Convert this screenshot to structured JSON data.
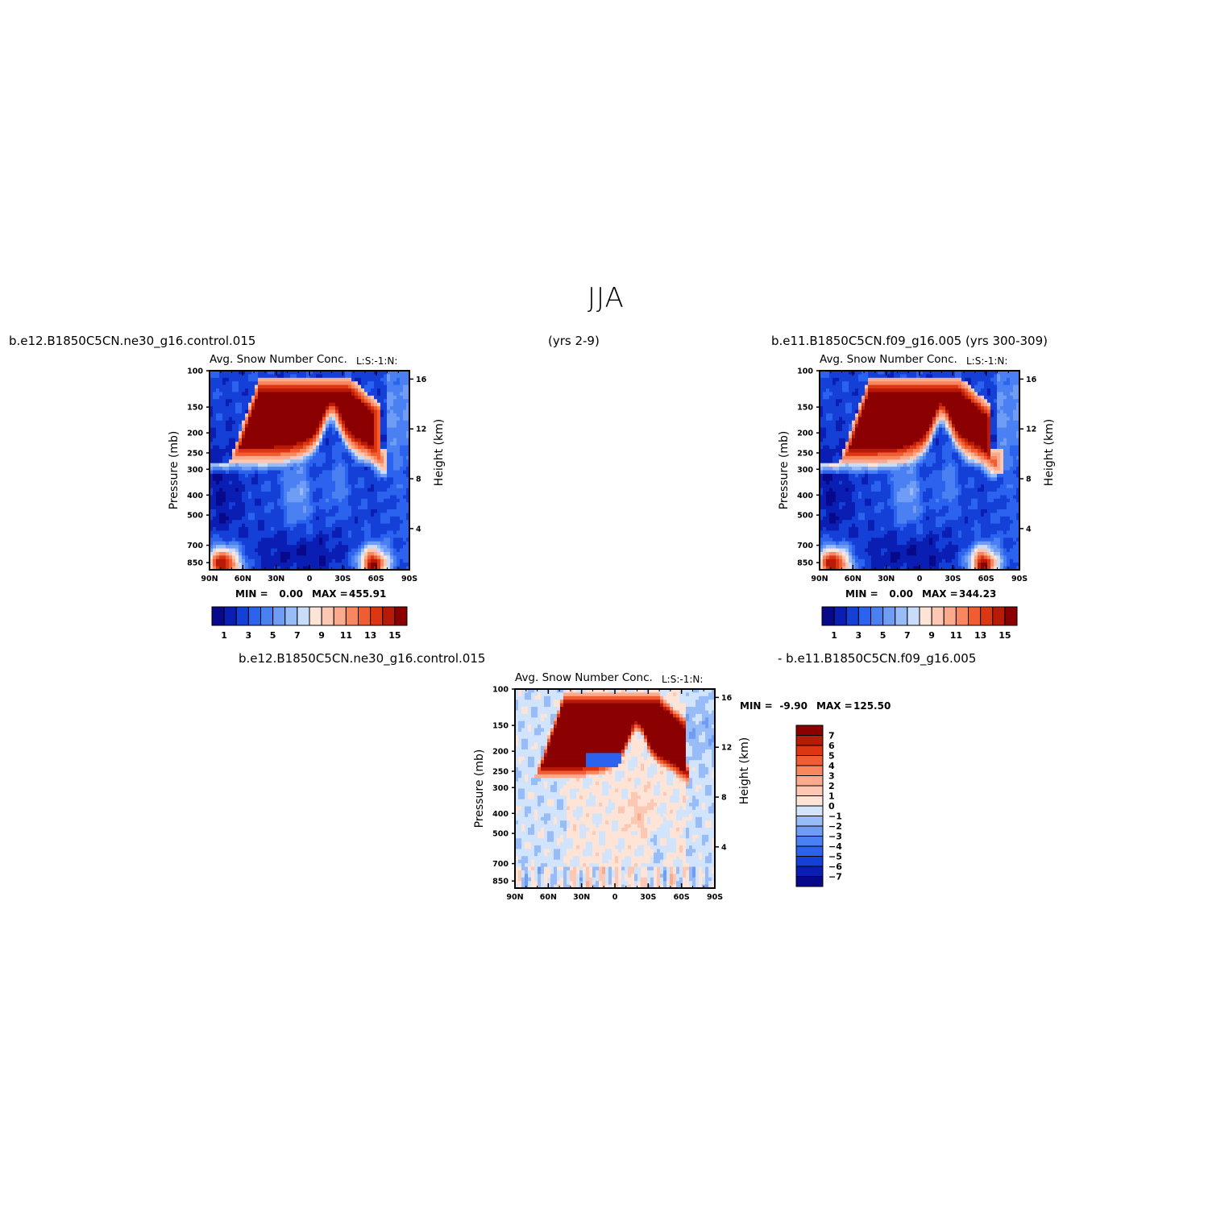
{
  "figure": {
    "title": "JJA",
    "left_case": "b.e12.B1850C5CN.ne30_g16.control.015",
    "years_left": "(yrs 2-9)",
    "right_case": "b.e11.B1850C5CN.f09_g16.005 (yrs 300-309)",
    "diff_case_a": "b.e12.B1850C5CN.ne30_g16.control.015",
    "diff_case_b": "- b.e11.B1850C5CN.f09_g16.005"
  },
  "colors": {
    "main_scale": [
      "#08088a",
      "#0a1eb4",
      "#1540d8",
      "#2c63ee",
      "#4b80f2",
      "#6f9cf4",
      "#98bcf7",
      "#c9ddfb",
      "#fde4d6",
      "#fcc8b4",
      "#fbaa8e",
      "#f8865f",
      "#f15d33",
      "#dc3613",
      "#b81a08",
      "#8b0000"
    ],
    "diff_scale": [
      "#08088a",
      "#0a1eb4",
      "#1540d8",
      "#2c63ee",
      "#4b80f2",
      "#6f9cf4",
      "#98bcf7",
      "#d2e4fb",
      "#fde4d6",
      "#fcc8b4",
      "#fbaa8e",
      "#f8865f",
      "#f15d33",
      "#dc3613",
      "#b81a08",
      "#8b0000"
    ]
  },
  "chart_data": [
    {
      "type": "heatmap",
      "panel": "control",
      "title": "Avg. Snow Number Conc.",
      "units": "L:S:-1:N:",
      "xlabel": "",
      "ylabel": "Pressure (mb)",
      "ylabel_right": "Height (km)",
      "x_ticks": [
        "90N",
        "60N",
        "30N",
        "0",
        "30S",
        "60S",
        "90S"
      ],
      "y_ticks": [
        "100",
        "150",
        "200",
        "250",
        "300",
        "400",
        "500",
        "700",
        "850"
      ],
      "y_right_ticks": [
        "16",
        "12",
        "8",
        "4"
      ],
      "min_label": "MIN =",
      "min": "0.00",
      "max_label": "MAX =",
      "max": "455.91",
      "colorbar_ticks": [
        "1",
        "3",
        "5",
        "7",
        "9",
        "11",
        "13",
        "15"
      ],
      "colorbar_range": [
        0,
        16
      ]
    },
    {
      "type": "heatmap",
      "panel": "reference",
      "title": "Avg. Snow Number Conc.",
      "units": "L:S:-1:N:",
      "xlabel": "",
      "ylabel": "Pressure (mb)",
      "ylabel_right": "Height (km)",
      "x_ticks": [
        "90N",
        "60N",
        "30N",
        "0",
        "30S",
        "60S",
        "90S"
      ],
      "y_ticks": [
        "100",
        "150",
        "200",
        "250",
        "300",
        "400",
        "500",
        "700",
        "850"
      ],
      "y_right_ticks": [
        "16",
        "12",
        "8",
        "4"
      ],
      "min_label": "MIN =",
      "min": "0.00",
      "max_label": "MAX =",
      "max": "344.23",
      "colorbar_ticks": [
        "1",
        "3",
        "5",
        "7",
        "9",
        "11",
        "13",
        "15"
      ],
      "colorbar_range": [
        0,
        16
      ]
    },
    {
      "type": "heatmap",
      "panel": "difference",
      "title": "Avg. Snow Number Conc.",
      "units": "L:S:-1:N:",
      "xlabel": "",
      "ylabel": "Pressure (mb)",
      "ylabel_right": "Height (km)",
      "x_ticks": [
        "90N",
        "60N",
        "30N",
        "0",
        "30S",
        "60S",
        "90S"
      ],
      "y_ticks": [
        "100",
        "150",
        "200",
        "250",
        "300",
        "400",
        "500",
        "700",
        "850"
      ],
      "y_right_ticks": [
        "16",
        "12",
        "8",
        "4"
      ],
      "min_label": "MIN =",
      "min": "-9.90",
      "max_label": "MAX =",
      "max": "125.50",
      "colorbar_ticks": [
        "7",
        "6",
        "5",
        "4",
        "3",
        "2",
        "1",
        "0",
        "-1",
        "-2",
        "-3",
        "-4",
        "-5",
        "-6",
        "-7"
      ],
      "colorbar_range": [
        -8,
        8
      ]
    }
  ]
}
